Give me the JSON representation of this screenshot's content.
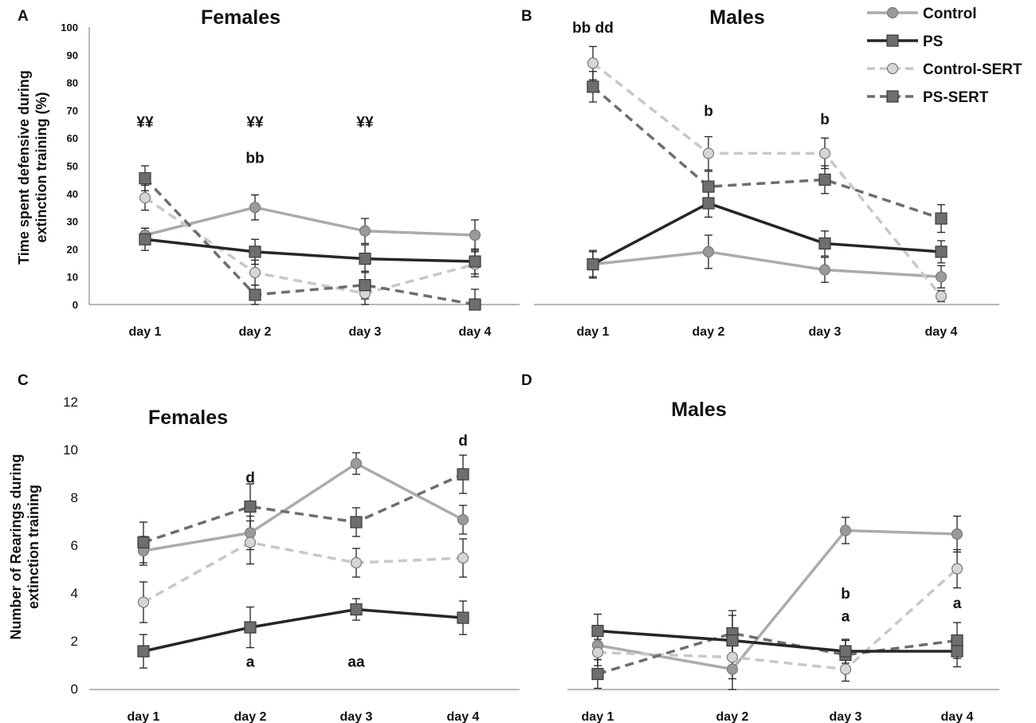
{
  "legend": {
    "items": [
      {
        "label": "Control",
        "color": "#ababab",
        "dash": false,
        "marker": "circle"
      },
      {
        "label": "PS",
        "color": "#262626",
        "dash": false,
        "marker": "square"
      },
      {
        "label": "Control-SERT",
        "color": "#c8c8c8",
        "dash": true,
        "marker": "circle"
      },
      {
        "label": "PS-SERT",
        "color": "#6e6e6e",
        "dash": true,
        "marker": "square"
      }
    ]
  },
  "chart_data": [
    {
      "panel": "A",
      "type": "line",
      "title": "Females",
      "ylabel_lines": [
        "Time spent defensive during",
        "extinction training (%)"
      ],
      "categories": [
        "day 1",
        "day 2",
        "day 3",
        "day 4"
      ],
      "ylim": [
        0,
        100
      ],
      "yticks": [
        0,
        10,
        20,
        30,
        40,
        50,
        60,
        70,
        80,
        90,
        100
      ],
      "series": [
        {
          "name": "Control",
          "values": [
            25,
            35,
            26.5,
            25
          ],
          "errors": [
            2.5,
            4.5,
            4.5,
            5.5
          ]
        },
        {
          "name": "PS",
          "values": [
            23.5,
            19,
            16.5,
            15.5
          ],
          "errors": [
            4,
            4.5,
            5,
            4.5
          ]
        },
        {
          "name": "Control-SERT",
          "values": [
            38.5,
            11.5,
            4,
            14.5
          ],
          "errors": [
            4.5,
            4.5,
            4,
            4.5
          ]
        },
        {
          "name": "PS-SERT",
          "values": [
            45.5,
            3.5,
            7,
            0
          ],
          "errors": [
            4.5,
            3.5,
            5,
            5.5
          ]
        }
      ],
      "annotations": [
        {
          "text": "¥¥",
          "x": 0,
          "y": 64
        },
        {
          "text": "¥¥",
          "x": 1,
          "y": 64
        },
        {
          "text": "bb",
          "x": 1,
          "y": 51
        },
        {
          "text": "¥¥",
          "x": 2,
          "y": 64
        }
      ]
    },
    {
      "panel": "B",
      "type": "line",
      "title": "Males",
      "categories": [
        "day 1",
        "day 2",
        "day 3",
        "day 4"
      ],
      "ylim": [
        0,
        100
      ],
      "series": [
        {
          "name": "Control",
          "values": [
            14.5,
            19,
            12.5,
            10
          ],
          "errors": [
            4.5,
            6,
            4.5,
            4
          ]
        },
        {
          "name": "PS",
          "values": [
            14.5,
            36.5,
            22,
            19
          ],
          "errors": [
            5,
            5,
            4.5,
            4
          ]
        },
        {
          "name": "Control-SERT",
          "values": [
            87,
            54.5,
            54.5,
            3
          ],
          "errors": [
            6,
            6,
            5.5,
            2
          ]
        },
        {
          "name": "PS-SERT",
          "values": [
            78.5,
            42.5,
            45,
            31
          ],
          "errors": [
            5.5,
            5.5,
            5,
            5
          ]
        }
      ],
      "annotations": [
        {
          "text": "bb  dd",
          "x": 0,
          "y": 98
        },
        {
          "text": "b",
          "x": 1,
          "y": 68
        },
        {
          "text": "b",
          "x": 2,
          "y": 65
        }
      ]
    },
    {
      "panel": "C",
      "type": "line",
      "title": "Females",
      "ylabel_lines": [
        "Number of Rearings during",
        "extinction training"
      ],
      "categories": [
        "day 1",
        "day 2",
        "day 3",
        "day 4"
      ],
      "ylim": [
        0,
        12
      ],
      "yticks": [
        0,
        2,
        4,
        6,
        8,
        10,
        12
      ],
      "series": [
        {
          "name": "Control",
          "values": [
            5.8,
            6.55,
            9.45,
            7.1
          ],
          "errors": [
            0.6,
            0.7,
            0.45,
            0.6
          ]
        },
        {
          "name": "PS",
          "values": [
            1.6,
            2.6,
            3.35,
            3.0
          ],
          "errors": [
            0.7,
            0.85,
            0.45,
            0.7
          ]
        },
        {
          "name": "Control-SERT",
          "values": [
            3.65,
            6.15,
            5.3,
            5.5
          ],
          "errors": [
            0.85,
            0.9,
            0.6,
            0.8
          ]
        },
        {
          "name": "PS-SERT",
          "values": [
            6.15,
            7.65,
            7.0,
            9.0
          ],
          "errors": [
            0.85,
            0.95,
            0.6,
            0.8
          ]
        }
      ],
      "annotations": [
        {
          "text": "d",
          "x": 1,
          "y": 8.65
        },
        {
          "text": "d",
          "x": 3,
          "y": 10.2
        },
        {
          "text": "a",
          "x": 1,
          "y": 0.95
        },
        {
          "text": "aa",
          "x": 2,
          "y": 0.95
        }
      ]
    },
    {
      "panel": "D",
      "type": "line",
      "title": "Males",
      "categories": [
        "day 1",
        "day 2",
        "day 3",
        "day 4"
      ],
      "ylim": [
        0,
        12
      ],
      "series": [
        {
          "name": "Control",
          "values": [
            1.85,
            0.85,
            6.65,
            6.5
          ],
          "errors": [
            0.6,
            1.0,
            0.55,
            0.75
          ]
        },
        {
          "name": "PS",
          "values": [
            2.45,
            2.05,
            1.6,
            1.6
          ],
          "errors": [
            0.7,
            1.05,
            0.5,
            0.65
          ]
        },
        {
          "name": "Control-SERT",
          "values": [
            1.55,
            1.35,
            0.85,
            5.05
          ],
          "errors": [
            0.55,
            0.9,
            0.5,
            0.8
          ]
        },
        {
          "name": "PS-SERT",
          "values": [
            0.65,
            2.35,
            1.45,
            2.05
          ],
          "errors": [
            0.6,
            0.95,
            0.6,
            0.75
          ]
        }
      ],
      "annotations": [
        {
          "text": "b",
          "x": 2,
          "y": 3.8
        },
        {
          "text": "a",
          "x": 2,
          "y": 2.85
        },
        {
          "text": "a",
          "x": 3,
          "y": 3.4
        }
      ]
    }
  ]
}
